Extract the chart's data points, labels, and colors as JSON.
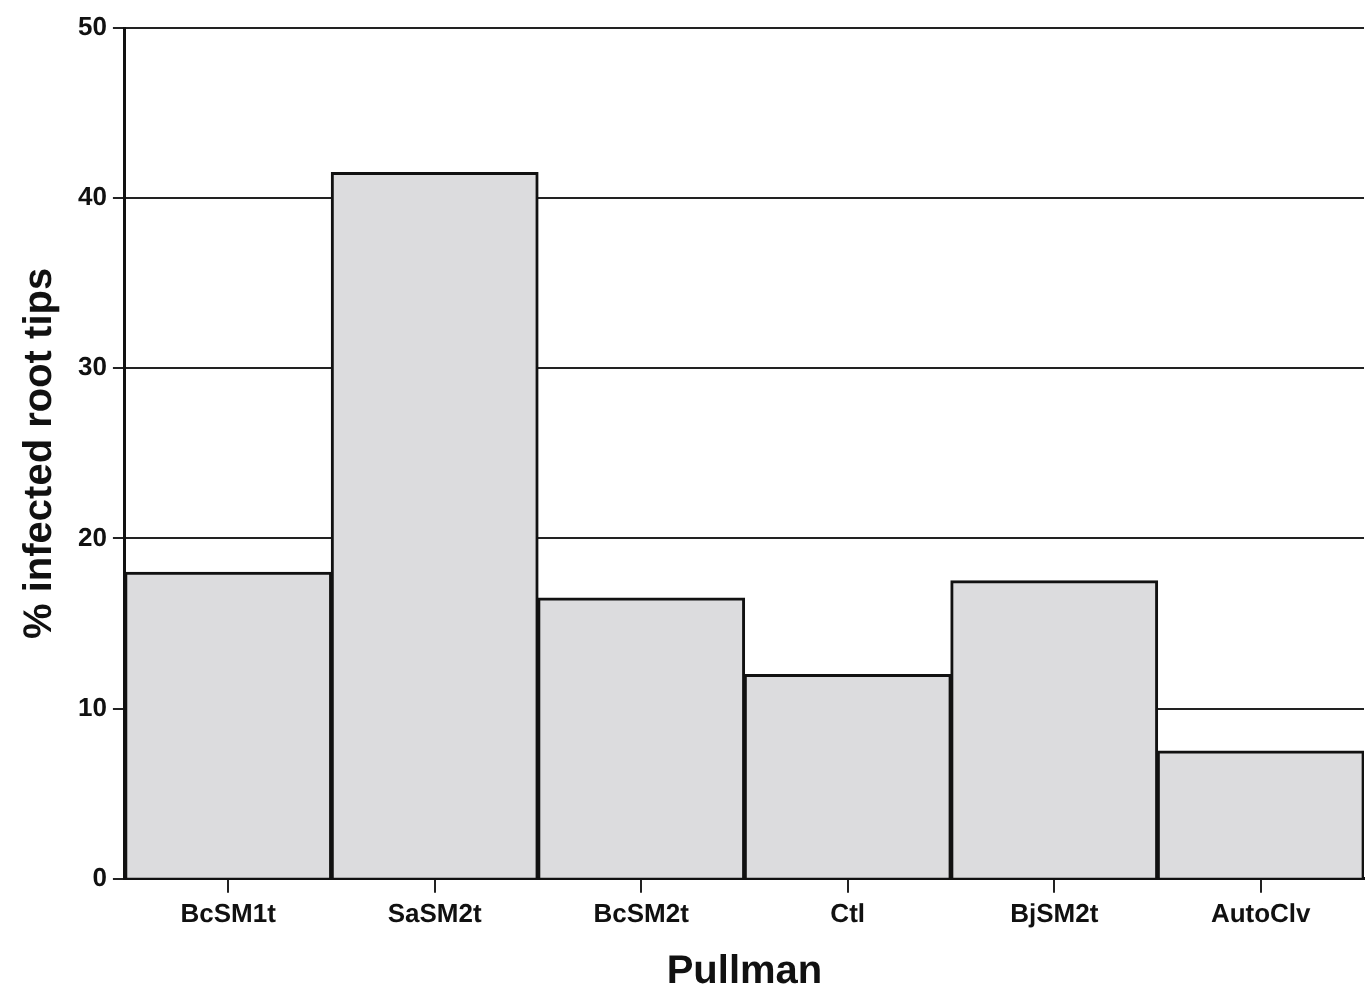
{
  "chart_data": {
    "type": "bar",
    "xlabel": "Pullman",
    "ylabel": "% infected root tips",
    "categories": [
      "BcSM1t",
      "SaSM2t",
      "BcSM2t",
      "Ctl",
      "BjSM2t",
      "AutoClv"
    ],
    "values": [
      18,
      41.5,
      16.5,
      12,
      17.5,
      7.5
    ],
    "color": "#dcdcde",
    "ylim": [
      0,
      50
    ],
    "yticks": [
      0,
      10,
      20,
      30,
      40,
      50
    ],
    "grid": "y"
  }
}
